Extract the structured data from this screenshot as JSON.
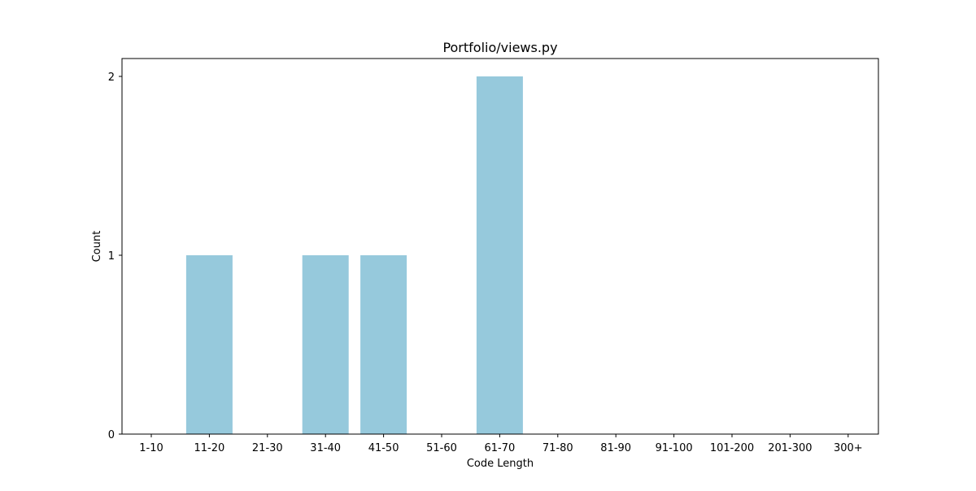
{
  "chart_data": {
    "type": "bar",
    "title": "Portfolio/views.py",
    "xlabel": "Code Length",
    "ylabel": "Count",
    "categories": [
      "1-10",
      "11-20",
      "21-30",
      "31-40",
      "41-50",
      "51-60",
      "61-70",
      "71-80",
      "81-90",
      "91-100",
      "101-200",
      "201-300",
      "300+"
    ],
    "values": [
      0,
      1,
      0,
      1,
      1,
      0,
      2,
      0,
      0,
      0,
      0,
      0,
      0
    ],
    "yticks": [
      "0",
      "1",
      "2"
    ],
    "ylim": [
      0,
      2.1
    ],
    "grid": false,
    "legend": false,
    "bar_color": "#96c9dc"
  }
}
